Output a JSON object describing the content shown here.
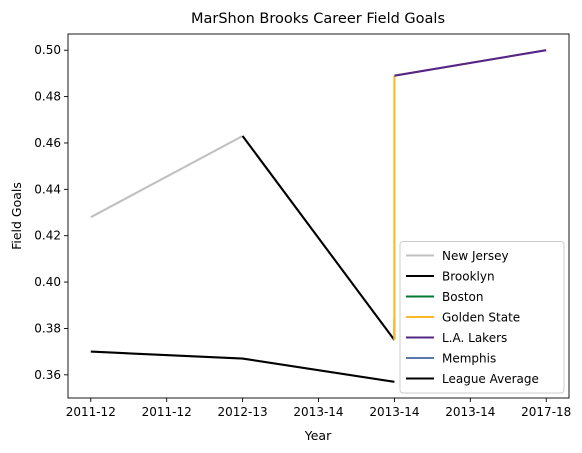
{
  "chart_data": {
    "type": "line",
    "title": "MarShon Brooks Career Field Goals",
    "xlabel": "Year",
    "ylabel": "Field Goals",
    "x_tick_labels": [
      "2011-12",
      "2011-12",
      "2012-13",
      "2013-14",
      "2013-14",
      "2013-14",
      "2017-18"
    ],
    "x_tick_positions": [
      0,
      1,
      2,
      3,
      4,
      5,
      6
    ],
    "xlim": [
      -0.3,
      6.3
    ],
    "ylim": [
      0.35,
      0.507
    ],
    "y_ticks": [
      0.36,
      0.38,
      0.4,
      0.42,
      0.44,
      0.46,
      0.48,
      0.5
    ],
    "y_tick_labels": [
      "0.36",
      "0.38",
      "0.40",
      "0.42",
      "0.44",
      "0.46",
      "0.48",
      "0.50"
    ],
    "grid": false,
    "legend_position": "bottom-right",
    "series": [
      {
        "name": "New Jersey",
        "color": "#c0c0c0",
        "x": [
          0,
          2
        ],
        "y": [
          0.428,
          0.463
        ]
      },
      {
        "name": "Brooklyn",
        "color": "#000000",
        "x": [
          2,
          4
        ],
        "y": [
          0.463,
          0.375
        ]
      },
      {
        "name": "Boston",
        "color": "#007a33",
        "x": [
          4,
          4
        ],
        "y": [
          0.375,
          0.384
        ]
      },
      {
        "name": "Golden State",
        "color": "#fdb927",
        "x": [
          4,
          4
        ],
        "y": [
          0.375,
          0.489
        ]
      },
      {
        "name": "L.A. Lakers",
        "color": "#552583",
        "x": [
          4,
          6
        ],
        "y": [
          0.489,
          0.5
        ]
      },
      {
        "name": "Memphis",
        "color": "#5d76a9",
        "x": [],
        "y": []
      },
      {
        "name": "League Average",
        "color": "#000000",
        "x": [
          0,
          2,
          4
        ],
        "y": [
          0.37,
          0.367,
          0.357
        ]
      }
    ]
  }
}
